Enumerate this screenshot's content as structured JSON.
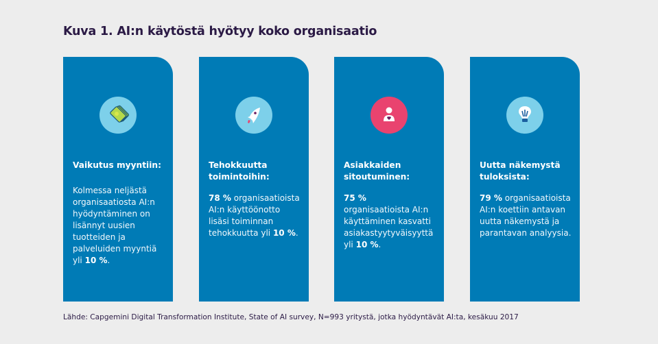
{
  "title": "Kuva 1. AI:n käytöstä hyötyy koko organisaatio",
  "cards": [
    {
      "icon": "money-bills-icon",
      "icon_bg": "#7dd0ea",
      "heading": "Vaikutus myyntiin:",
      "body": [
        "Kolmessa neljästä\norganisaatiosta AI:n\nhyödyntäminen on\nlisännyt uusien\ntuotteiden ja\npalveluiden myyntiä\nyli ",
        "10 %",
        "."
      ]
    },
    {
      "icon": "rocket-icon",
      "icon_bg": "#7dd0ea",
      "heading": "Tehokkuutta\ntoimintoihin:",
      "body": [
        "",
        "78 %",
        " organisaatioista\nAI:n käyttöönotto\nlisäsi toiminnan\ntehokkuutta yli ",
        "10 %",
        "."
      ]
    },
    {
      "icon": "customer-heart-icon",
      "icon_bg": "#e9436f",
      "heading": "Asiakkaiden\nsitoutuminen:",
      "body": [
        "",
        "75 %",
        "\norganisaatioista AI:n\nkäyttäminen kasvatti\nasiakastyytyväisyyttä\nyli ",
        "10 %",
        "."
      ]
    },
    {
      "icon": "lightbulb-icon",
      "icon_bg": "#7dd0ea",
      "heading": "Uutta näkemystä\ntuloksista:",
      "body": [
        "",
        "79 %",
        " organisaatioista\nAI:n koettiin antavan\nuutta näkemystä ja\nparantavan analyysia."
      ]
    }
  ],
  "footer": "Lähde: Capgemini Digital Transformation Institute, State of AI survey, N=993 yritystä, jotka hyödyntävät AI:ta, kesäkuu 2017"
}
